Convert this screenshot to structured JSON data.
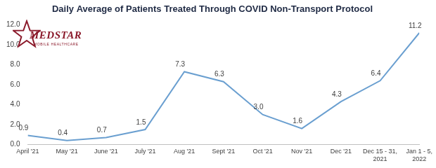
{
  "chart_data": {
    "type": "line",
    "title": "Daily Average of Patients Treated Through COVID Non-Transport Protocol",
    "categories": [
      "April '21",
      "May '21",
      "June '21",
      "July '21",
      "Aug '21",
      "Sept '21",
      "Oct '21",
      "Nov '21",
      "Dec '21",
      "Dec 15 - 31, 2021",
      "Jan 1 - 5, 2022"
    ],
    "values": [
      0.9,
      0.4,
      0.7,
      1.5,
      7.3,
      6.3,
      3.0,
      1.6,
      4.3,
      6.4,
      11.2
    ],
    "value_labels": [
      "0.9",
      "0.4",
      "0.7",
      "1.5",
      "7.3",
      "6.3",
      "3.0",
      "1.6",
      "4.3",
      "6.4",
      "11.2"
    ],
    "color": "#6a9fd0",
    "marker": "none",
    "ylim": [
      0,
      12
    ],
    "yticks": [
      {
        "value": 0,
        "label": "0.0"
      },
      {
        "value": 2,
        "label": "2.0"
      },
      {
        "value": 4,
        "label": "4.0"
      },
      {
        "value": 6,
        "label": "6.0"
      },
      {
        "value": 8,
        "label": "8.0"
      },
      {
        "value": 10,
        "label": "10.0"
      },
      {
        "value": 12,
        "label": "12.0"
      }
    ],
    "grid": false,
    "data_labels": true,
    "annotations": [
      "MEDSTAR",
      "MOBILE HEALTHCARE"
    ]
  }
}
